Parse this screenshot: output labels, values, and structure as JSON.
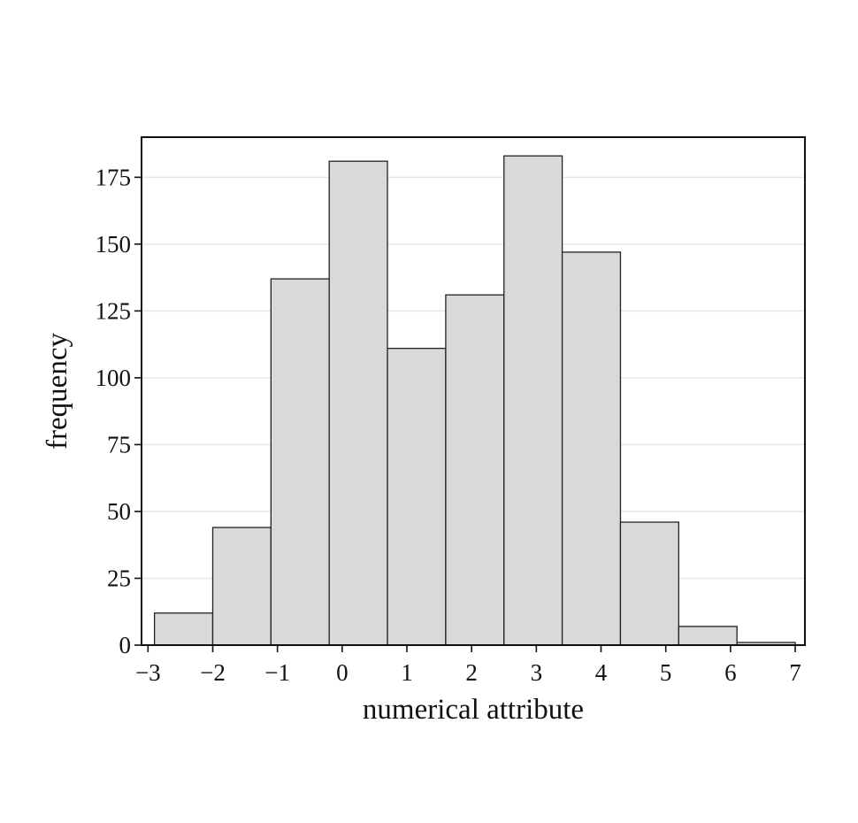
{
  "chart_data": {
    "type": "bar",
    "title": "",
    "xlabel": "numerical attribute",
    "ylabel": "frequency",
    "xlim": [
      -3.1,
      7.15
    ],
    "ylim": [
      0,
      190
    ],
    "xticks": [
      -3,
      -2,
      -1,
      0,
      1,
      2,
      3,
      4,
      5,
      6,
      7
    ],
    "xtick_labels": [
      "−3",
      "−2",
      "−1",
      "0",
      "1",
      "2",
      "3",
      "4",
      "5",
      "6",
      "7"
    ],
    "yticks": [
      0,
      25,
      50,
      75,
      100,
      125,
      150,
      175
    ],
    "ytick_labels": [
      "0",
      "25",
      "50",
      "75",
      "100",
      "125",
      "150",
      "175"
    ],
    "grid": true,
    "bins": [
      {
        "x0": -2.9,
        "x1": -2.0,
        "count": 12
      },
      {
        "x0": -2.0,
        "x1": -1.1,
        "count": 44
      },
      {
        "x0": -1.1,
        "x1": -0.2,
        "count": 137
      },
      {
        "x0": -0.2,
        "x1": 0.7,
        "count": 181
      },
      {
        "x0": 0.7,
        "x1": 1.6,
        "count": 111
      },
      {
        "x0": 1.6,
        "x1": 2.5,
        "count": 131
      },
      {
        "x0": 2.5,
        "x1": 3.4,
        "count": 183
      },
      {
        "x0": 3.4,
        "x1": 4.3,
        "count": 147
      },
      {
        "x0": 4.3,
        "x1": 5.2,
        "count": 46
      },
      {
        "x0": 5.2,
        "x1": 6.1,
        "count": 7
      },
      {
        "x0": 6.1,
        "x1": 7.0,
        "count": 1
      }
    ]
  }
}
